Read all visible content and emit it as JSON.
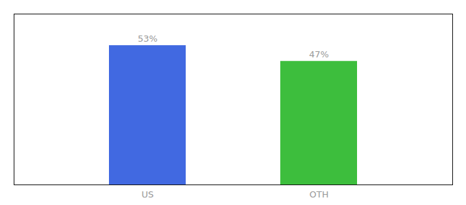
{
  "chart_data": {
    "type": "bar",
    "categories": [
      "US",
      "OTH"
    ],
    "values": [
      53,
      47
    ],
    "value_labels": [
      "53%",
      "47%"
    ],
    "colors": [
      "#4169e1",
      "#3dbe3d"
    ],
    "ylim": [
      0,
      65
    ],
    "data_labels": true,
    "tick_labels": "x",
    "grid": false
  }
}
